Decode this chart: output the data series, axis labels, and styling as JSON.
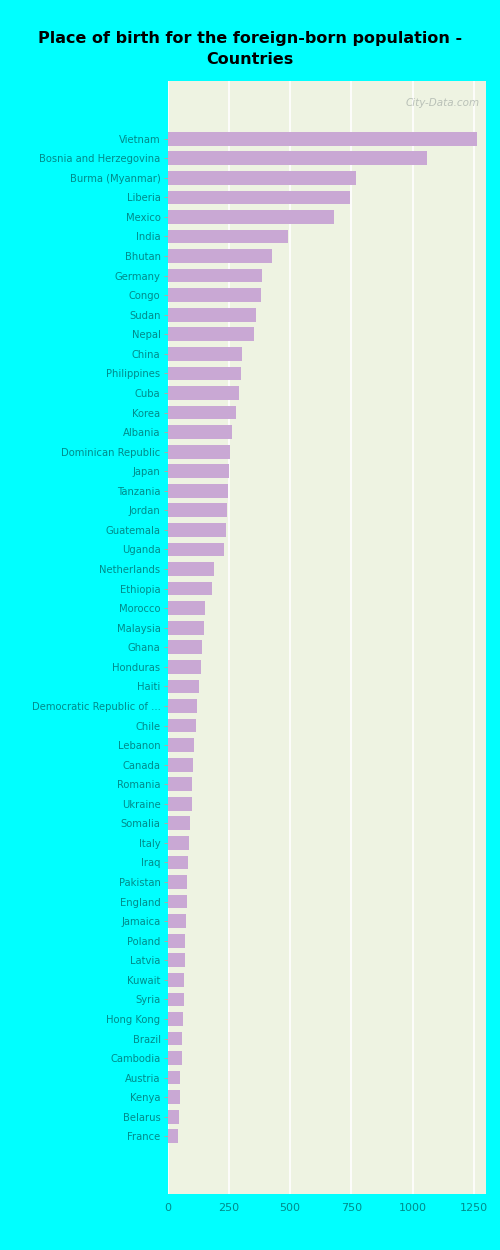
{
  "title": "Place of birth for the foreign-born population -\nCountries",
  "categories": [
    "Vietnam",
    "Bosnia and Herzegovina",
    "Burma (Myanmar)",
    "Liberia",
    "Mexico",
    "India",
    "Bhutan",
    "Germany",
    "Congo",
    "Sudan",
    "Nepal",
    "China",
    "Philippines",
    "Cuba",
    "Korea",
    "Albania",
    "Dominican Republic",
    "Japan",
    "Tanzania",
    "Jordan",
    "Guatemala",
    "Uganda",
    "Netherlands",
    "Ethiopia",
    "Morocco",
    "Malaysia",
    "Ghana",
    "Honduras",
    "Haiti",
    "Democratic Republic of ...",
    "Chile",
    "Lebanon",
    "Canada",
    "Romania",
    "Ukraine",
    "Somalia",
    "Italy",
    "Iraq",
    "Pakistan",
    "England",
    "Jamaica",
    "Poland",
    "Latvia",
    "Kuwait",
    "Syria",
    "Hong Kong",
    "Brazil",
    "Cambodia",
    "Austria",
    "Kenya",
    "Belarus",
    "France"
  ],
  "values": [
    1265,
    1060,
    770,
    745,
    680,
    490,
    425,
    385,
    380,
    360,
    355,
    305,
    300,
    290,
    280,
    265,
    255,
    250,
    248,
    242,
    238,
    232,
    188,
    182,
    152,
    148,
    142,
    138,
    128,
    122,
    118,
    108,
    105,
    102,
    98,
    92,
    88,
    83,
    80,
    78,
    76,
    73,
    70,
    68,
    66,
    63,
    61,
    58,
    53,
    50,
    46,
    42
  ],
  "bar_color": "#c9a8d4",
  "bg_color_fig": "#00ffff",
  "bg_color_chart": "#eef3e2",
  "title_color": "#000000",
  "label_color": "#008b8b",
  "tick_color": "#008b8b",
  "xlim": [
    0,
    1300
  ],
  "xticks": [
    0,
    250,
    500,
    750,
    1000,
    1250
  ],
  "watermark": "City-Data.com",
  "bar_height": 0.7
}
